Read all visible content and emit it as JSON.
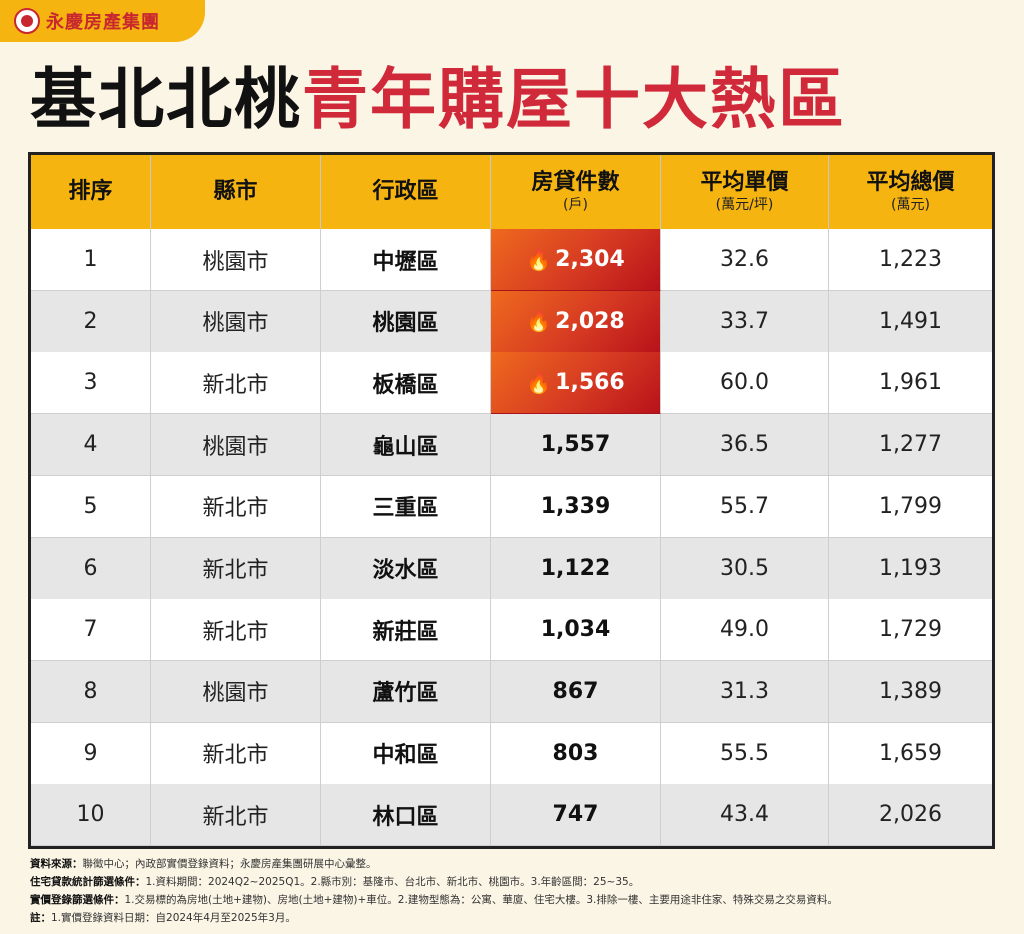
{
  "brand": {
    "logo_icon": "yungching-logo-icon",
    "name": "永慶房產集團"
  },
  "title": {
    "part1": "基北北桃",
    "part2": "青年購屋十大熱區",
    "accent_color": "#d0293a"
  },
  "table": {
    "headers": [
      {
        "main": "排序",
        "unit": ""
      },
      {
        "main": "縣市",
        "unit": ""
      },
      {
        "main": "行政區",
        "unit": ""
      },
      {
        "main": "房貸件數",
        "unit": "(戶)"
      },
      {
        "main": "平均單價",
        "unit": "(萬元/坪)"
      },
      {
        "main": "平均總價",
        "unit": "(萬元)"
      }
    ],
    "rows": [
      {
        "rank": "1",
        "city": "桃園市",
        "district": "中壢區",
        "loans": "2,304",
        "unit_price": "32.6",
        "total_price": "1,223",
        "hot": true
      },
      {
        "rank": "2",
        "city": "桃園市",
        "district": "桃園區",
        "loans": "2,028",
        "unit_price": "33.7",
        "total_price": "1,491",
        "hot": true
      },
      {
        "rank": "3",
        "city": "新北市",
        "district": "板橋區",
        "loans": "1,566",
        "unit_price": "60.0",
        "total_price": "1,961",
        "hot": true
      },
      {
        "rank": "4",
        "city": "桃園市",
        "district": "龜山區",
        "loans": "1,557",
        "unit_price": "36.5",
        "total_price": "1,277",
        "hot": false
      },
      {
        "rank": "5",
        "city": "新北市",
        "district": "三重區",
        "loans": "1,339",
        "unit_price": "55.7",
        "total_price": "1,799",
        "hot": false
      },
      {
        "rank": "6",
        "city": "新北市",
        "district": "淡水區",
        "loans": "1,122",
        "unit_price": "30.5",
        "total_price": "1,193",
        "hot": false
      },
      {
        "rank": "7",
        "city": "新北市",
        "district": "新莊區",
        "loans": "1,034",
        "unit_price": "49.0",
        "total_price": "1,729",
        "hot": false
      },
      {
        "rank": "8",
        "city": "桃園市",
        "district": "蘆竹區",
        "loans": "867",
        "unit_price": "31.3",
        "total_price": "1,389",
        "hot": false
      },
      {
        "rank": "9",
        "city": "新北市",
        "district": "中和區",
        "loans": "803",
        "unit_price": "55.5",
        "total_price": "1,659",
        "hot": false
      },
      {
        "rank": "10",
        "city": "新北市",
        "district": "林口區",
        "loans": "747",
        "unit_price": "43.4",
        "total_price": "2,026",
        "hot": false
      }
    ],
    "hot_icon": "flame-icon"
  },
  "notes": [
    {
      "label": "資料來源：",
      "text": "聯徵中心；內政部實價登錄資料；永慶房產集團研展中心彙整。"
    },
    {
      "label": "住宅貸款統計篩選條件：",
      "text": "1.資料期間：2024Q2~2025Q1。2.縣市別：基隆市、台北市、新北市、桃園市。3.年齡區間：25~35。"
    },
    {
      "label": "實價登錄篩選條件：",
      "text": "1.交易標的為房地(土地+建物)、房地(土地+建物)+車位。2.建物型態為：公寓、華廈、住宅大樓。3.排除一樓、主要用途非住家、特殊交易之交易資料。"
    },
    {
      "label": "註：",
      "text": "1.實價登錄資料日期：自2024年4月至2025年3月。"
    }
  ]
}
